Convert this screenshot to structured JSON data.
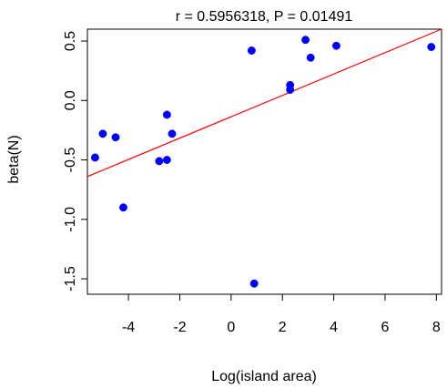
{
  "chart_data": {
    "type": "scatter",
    "title": "r = 0.5956318, P = 0.01491",
    "xlabel": "Log(island area)",
    "ylabel": "beta(N)",
    "xlim": [
      -5.6,
      8.2
    ],
    "ylim": [
      -1.63,
      0.6
    ],
    "x_ticks": [
      -4,
      -2,
      0,
      2,
      4,
      6,
      8
    ],
    "x_tick_labels": [
      "-4",
      "-2",
      "0",
      "2",
      "4",
      "6",
      "8"
    ],
    "y_ticks": [
      -1.5,
      -1.0,
      -0.5,
      0.0,
      0.5
    ],
    "y_tick_labels": [
      "-1.5",
      "-1.0",
      "-0.5",
      "0.0",
      "0.5"
    ],
    "points": [
      {
        "x": -5.3,
        "y": -0.48
      },
      {
        "x": -5.0,
        "y": -0.28
      },
      {
        "x": -4.5,
        "y": -0.31
      },
      {
        "x": -4.2,
        "y": -0.9
      },
      {
        "x": -2.8,
        "y": -0.51
      },
      {
        "x": -2.5,
        "y": -0.12
      },
      {
        "x": -2.3,
        "y": -0.28
      },
      {
        "x": -2.5,
        "y": -0.5
      },
      {
        "x": 0.8,
        "y": 0.42
      },
      {
        "x": 0.9,
        "y": -1.54
      },
      {
        "x": 2.3,
        "y": 0.13
      },
      {
        "x": 2.3,
        "y": 0.09
      },
      {
        "x": 2.9,
        "y": 0.51
      },
      {
        "x": 3.1,
        "y": 0.36
      },
      {
        "x": 4.1,
        "y": 0.46
      },
      {
        "x": 7.8,
        "y": 0.45
      }
    ],
    "fit_line": {
      "x": [
        -5.6,
        8.2
      ],
      "y": [
        -0.64,
        0.6
      ]
    },
    "grid": false,
    "legend": "none",
    "colors": {
      "points": "#0000ff",
      "fit_line": "#ff0000",
      "axis": "#000000",
      "background": "#ffffff"
    }
  }
}
